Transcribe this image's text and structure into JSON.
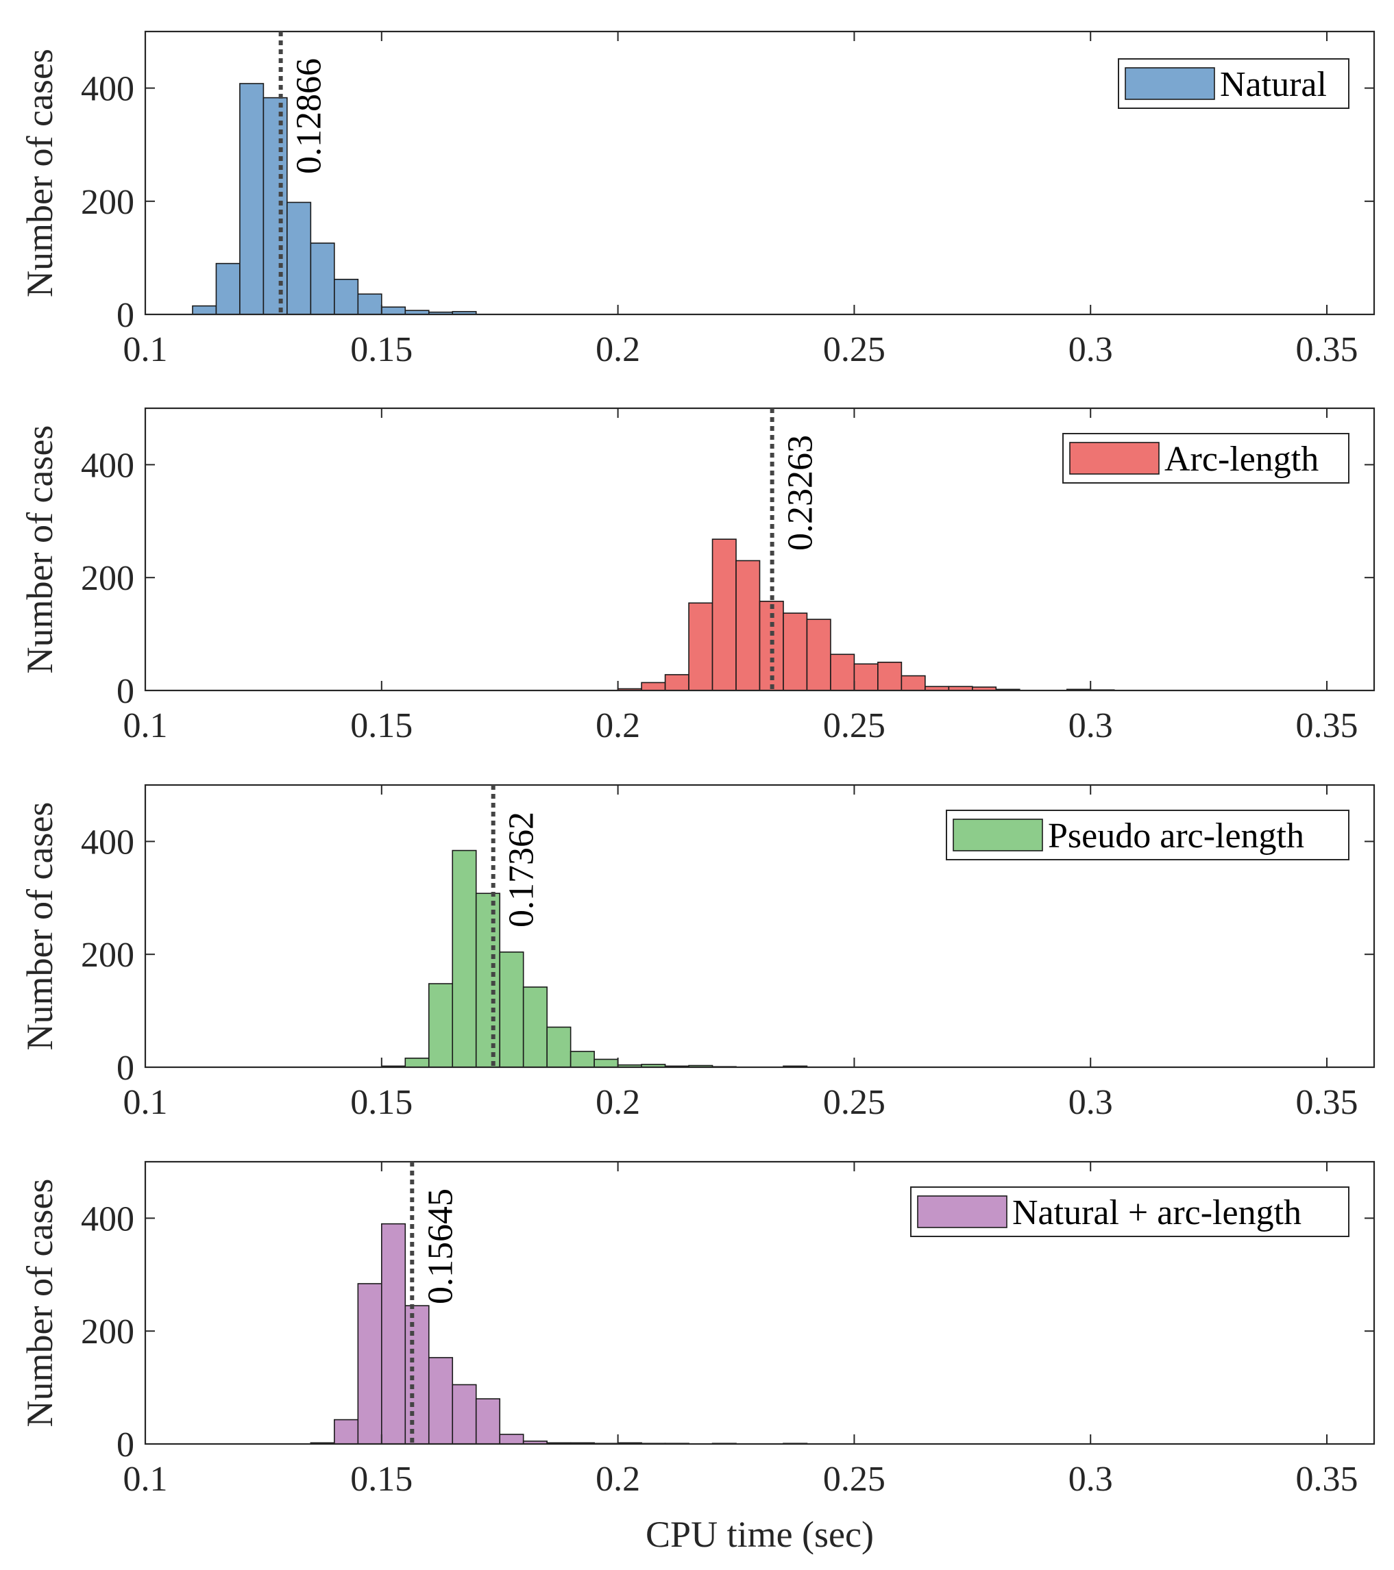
{
  "chart_data": [
    {
      "type": "bar",
      "ylabel": "Number of cases",
      "xlabel": "",
      "xlim": [
        0.1,
        0.36
      ],
      "ylim": [
        0,
        500
      ],
      "xticks": [
        "0.1",
        "0.15",
        "0.2",
        "0.25",
        "0.3",
        "0.35"
      ],
      "yticks": [
        "0",
        "200",
        "400"
      ],
      "bin_width": 0.005,
      "series": [
        {
          "name": "Natural",
          "color": "#7ba7d0",
          "bins_start": [
            0.11,
            0.115,
            0.12,
            0.125,
            0.13,
            0.135,
            0.14,
            0.145,
            0.15,
            0.155,
            0.16,
            0.165
          ],
          "values": [
            15,
            90,
            408,
            383,
            198,
            126,
            62,
            36,
            13,
            7,
            4,
            5
          ]
        }
      ],
      "annotation": {
        "x": 0.12866,
        "label": "0.12866"
      },
      "legend": "top-right",
      "grid": false
    },
    {
      "type": "bar",
      "ylabel": "Number of cases",
      "xlabel": "",
      "xlim": [
        0.1,
        0.36
      ],
      "ylim": [
        0,
        500
      ],
      "xticks": [
        "0.1",
        "0.15",
        "0.2",
        "0.25",
        "0.3",
        "0.35"
      ],
      "yticks": [
        "0",
        "200",
        "400"
      ],
      "bin_width": 0.005,
      "series": [
        {
          "name": "Arc-length",
          "color": "#ee7472",
          "bins_start": [
            0.2,
            0.205,
            0.21,
            0.215,
            0.22,
            0.225,
            0.23,
            0.235,
            0.24,
            0.245,
            0.25,
            0.255,
            0.26,
            0.265,
            0.27,
            0.275,
            0.28,
            0.285,
            0.29,
            0.295,
            0.3
          ],
          "values": [
            3,
            14,
            28,
            155,
            268,
            230,
            158,
            137,
            126,
            64,
            47,
            50,
            26,
            7,
            7,
            6,
            2,
            0,
            0,
            2,
            1
          ]
        }
      ],
      "annotation": {
        "x": 0.23263,
        "label": "0.23263"
      },
      "legend": "top-right",
      "grid": false
    },
    {
      "type": "bar",
      "ylabel": "Number of cases",
      "xlabel": "",
      "xlim": [
        0.1,
        0.36
      ],
      "ylim": [
        0,
        500
      ],
      "xticks": [
        "0.1",
        "0.15",
        "0.2",
        "0.25",
        "0.3",
        "0.35"
      ],
      "yticks": [
        "0",
        "200",
        "400"
      ],
      "bin_width": 0.005,
      "series": [
        {
          "name": "Pseudo arc-length",
          "color": "#8dcc8b",
          "bins_start": [
            0.15,
            0.155,
            0.16,
            0.165,
            0.17,
            0.175,
            0.18,
            0.185,
            0.19,
            0.195,
            0.2,
            0.205,
            0.21,
            0.215,
            0.22,
            0.225,
            0.23,
            0.235
          ],
          "values": [
            2,
            16,
            148,
            384,
            308,
            204,
            142,
            71,
            28,
            14,
            4,
            5,
            2,
            3,
            1,
            0,
            0,
            2
          ]
        }
      ],
      "annotation": {
        "x": 0.17362,
        "label": "0.17362"
      },
      "legend": "top-right",
      "grid": false
    },
    {
      "type": "bar",
      "ylabel": "Number of cases",
      "xlabel": "CPU time (sec)",
      "xlim": [
        0.1,
        0.36
      ],
      "ylim": [
        0,
        500
      ],
      "xticks": [
        "0.1",
        "0.15",
        "0.2",
        "0.25",
        "0.3",
        "0.35"
      ],
      "yticks": [
        "0",
        "200",
        "400"
      ],
      "bin_width": 0.005,
      "series": [
        {
          "name": "Natural + arc-length",
          "color": "#c495c7",
          "bins_start": [
            0.135,
            0.14,
            0.145,
            0.15,
            0.155,
            0.16,
            0.165,
            0.17,
            0.175,
            0.18,
            0.185,
            0.19,
            0.195,
            0.2,
            0.205,
            0.21,
            0.215,
            0.22,
            0.225,
            0.23,
            0.235
          ],
          "values": [
            2,
            43,
            284,
            390,
            245,
            153,
            105,
            80,
            17,
            5,
            2,
            2,
            1,
            2,
            1,
            1,
            0,
            1,
            0,
            0,
            1
          ]
        }
      ],
      "annotation": {
        "x": 0.15645,
        "label": "0.15645"
      },
      "legend": "top-right",
      "grid": false
    }
  ]
}
